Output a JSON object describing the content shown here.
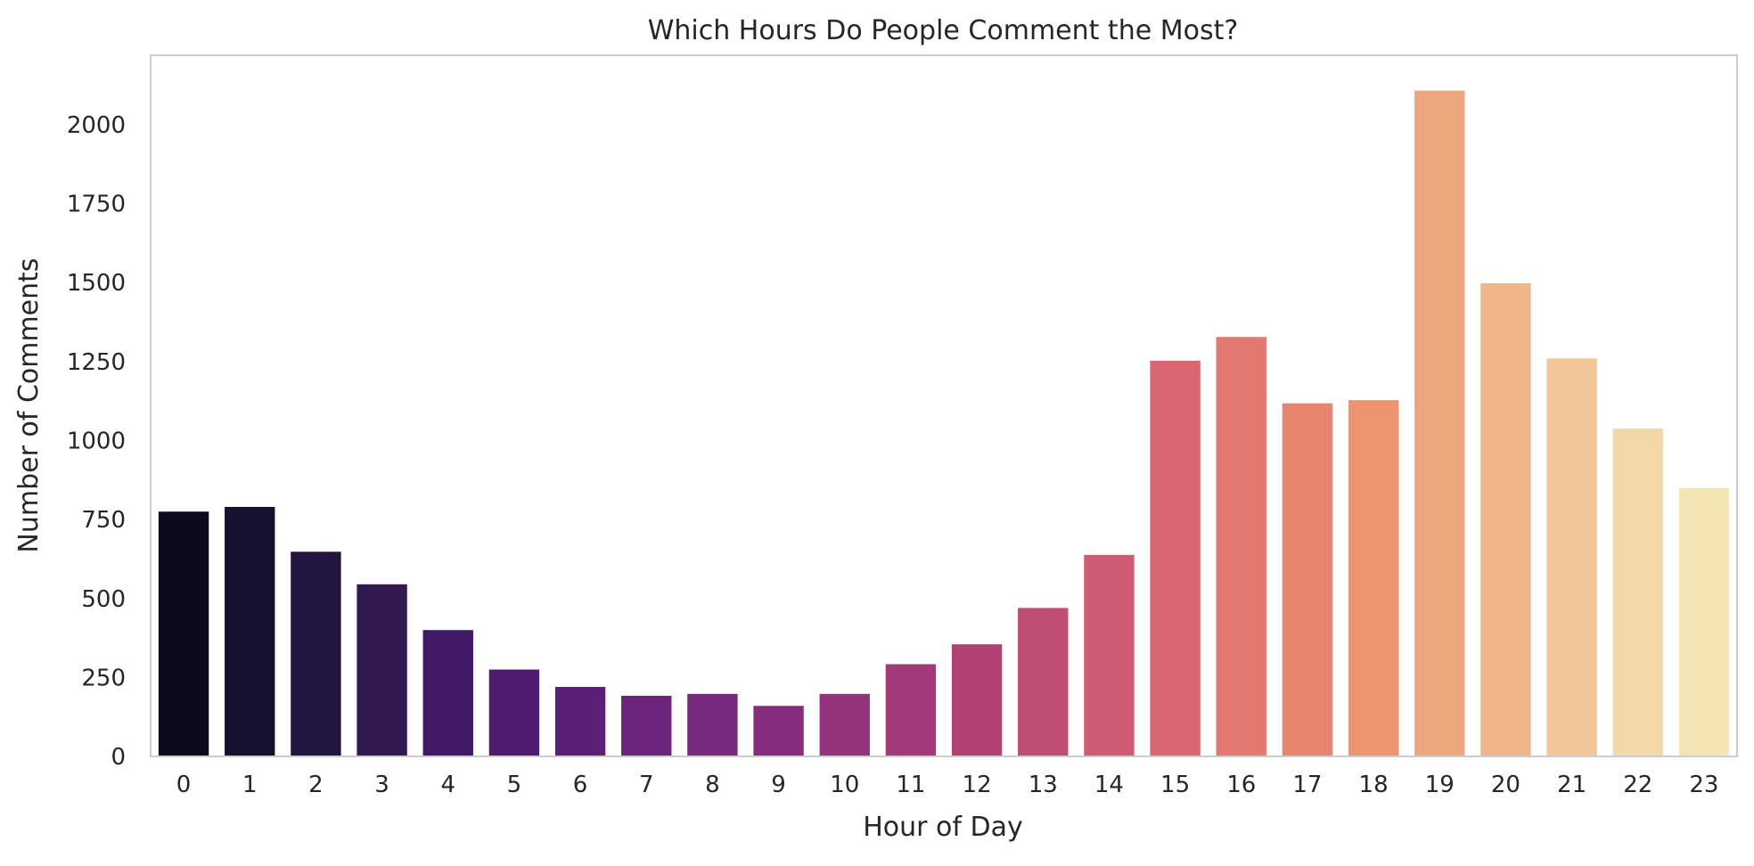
{
  "chart_data": {
    "type": "bar",
    "title": "Which Hours Do People Comment the Most?",
    "xlabel": "Hour of Day",
    "ylabel": "Number of Comments",
    "categories": [
      "0",
      "1",
      "2",
      "3",
      "4",
      "5",
      "6",
      "7",
      "8",
      "9",
      "10",
      "11",
      "12",
      "13",
      "14",
      "15",
      "16",
      "17",
      "18",
      "19",
      "20",
      "21",
      "22",
      "23"
    ],
    "values": [
      775,
      790,
      648,
      545,
      400,
      275,
      220,
      192,
      198,
      160,
      198,
      292,
      355,
      470,
      638,
      1253,
      1328,
      1118,
      1128,
      2108,
      1498,
      1260,
      1038,
      850
    ],
    "ylim": [
      0,
      2220
    ],
    "yticks": [
      0,
      250,
      500,
      750,
      1000,
      1250,
      1500,
      1750,
      2000
    ],
    "grid": false,
    "legend": "none",
    "colors": [
      "#0b0a1a",
      "#16112e",
      "#221640",
      "#301a50",
      "#411a67",
      "#4f1c70",
      "#5c1f76",
      "#6a2479",
      "#77297b",
      "#852d7c",
      "#93337b",
      "#a23a78",
      "#b14273",
      "#c04d72",
      "#cd5b72",
      "#d96670",
      "#e27870",
      "#e8856f",
      "#ec946f",
      "#eea67c",
      "#f0b68a",
      "#f2c698",
      "#f4d8a8",
      "#f6e6b5"
    ]
  }
}
